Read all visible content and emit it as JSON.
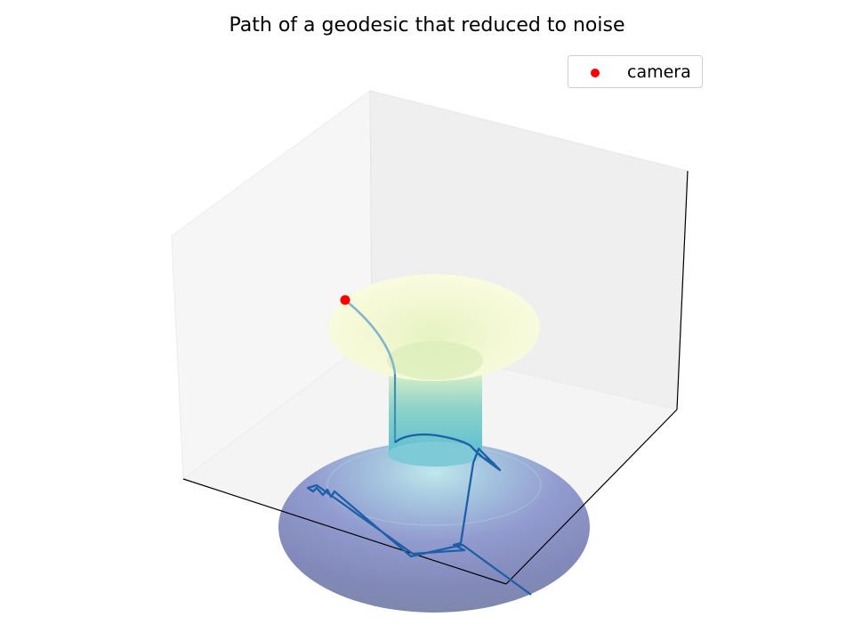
{
  "chart_data": {
    "type": "scatter",
    "plot_kind": "3d surface of revolution with a path",
    "title": "Path of a geodesic that reduced to noise",
    "grid": false,
    "legend": {
      "placement": "top-right",
      "entries": [
        {
          "label": "camera",
          "color": "#ff0000",
          "marker": "circle"
        }
      ]
    },
    "surface": {
      "shape": "flared-top neck narrowing then widening into a rounded base",
      "colormap": [
        "#ffffd9",
        "#c7e9b4",
        "#41b6c4",
        "#6a7fb8",
        "#8c96c6"
      ]
    },
    "path": {
      "color": "#1f5fa8",
      "start_color": "#7fb4cf"
    },
    "camera_point": {
      "color": "#ff0000"
    }
  }
}
